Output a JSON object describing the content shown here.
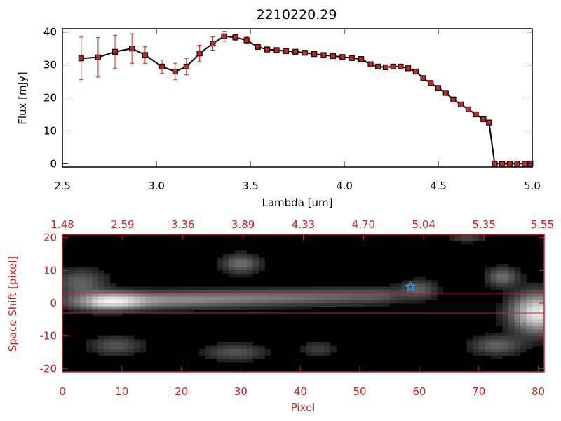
{
  "chart_data": [
    {
      "type": "line",
      "title": "2210220.29",
      "xlabel": "Lambda [um]",
      "ylabel": "Flux [mJy]",
      "xlim": [
        2.5,
        5.0
      ],
      "ylim": [
        -1,
        41
      ],
      "xticks": [
        "2.5",
        "3.0",
        "3.5",
        "4.0",
        "4.5",
        "5.0"
      ],
      "yticks": [
        "0",
        "10",
        "20",
        "30",
        "40"
      ],
      "grid": false,
      "legend": "none",
      "line_color": "#000000",
      "marker_color": "#cc2222",
      "errorbar_color": "#cc2222",
      "series": [
        {
          "x": [
            2.6,
            2.69,
            2.78,
            2.87,
            2.94,
            3.03,
            3.1,
            3.16,
            3.23,
            3.3,
            3.36,
            3.42,
            3.48,
            3.54,
            3.59,
            3.64,
            3.69,
            3.74,
            3.79,
            3.84,
            3.89,
            3.94,
            3.99,
            4.04,
            4.09,
            4.14,
            4.18,
            4.22,
            4.26,
            4.3,
            4.34,
            4.38,
            4.42,
            4.46,
            4.5,
            4.54,
            4.58,
            4.62,
            4.66,
            4.7,
            4.74,
            4.77,
            4.8,
            4.84,
            4.88,
            4.92,
            4.96,
            4.99
          ],
          "y": [
            32.0,
            32.3,
            34.0,
            35.0,
            33.0,
            29.5,
            28.0,
            29.5,
            33.5,
            36.5,
            38.7,
            38.4,
            37.5,
            35.5,
            34.7,
            34.5,
            34.2,
            34.0,
            33.7,
            33.3,
            33.0,
            32.7,
            32.4,
            32.1,
            31.8,
            30.2,
            29.5,
            29.3,
            29.5,
            29.5,
            29.0,
            28.0,
            26.0,
            24.5,
            23.0,
            21.5,
            19.5,
            18.0,
            16.5,
            15.0,
            13.5,
            12.5,
            0,
            0,
            0,
            0,
            0,
            0
          ],
          "err": [
            6.5,
            6.0,
            5.0,
            4.5,
            2.5,
            2.0,
            2.5,
            2.5,
            2.5,
            2.0,
            1.5,
            1.0,
            1.0,
            0.7,
            0.6,
            0.6,
            0.6,
            0.5,
            0.5,
            0.5,
            0.5,
            0.5,
            0.5,
            0.5,
            0.5,
            0.5,
            0.5,
            0.5,
            0.5,
            0.5,
            0.5,
            0.5,
            0.5,
            0.5,
            0.5,
            0.5,
            0.5,
            0.5,
            0.5,
            0.5,
            0.5,
            0.5,
            0,
            0,
            0,
            0,
            0,
            0
          ]
        }
      ]
    },
    {
      "type": "heatmap",
      "xlabel": "Pixel",
      "ylabel": "Space Shift [pixel]",
      "xlim": [
        0,
        81
      ],
      "ylim": [
        -21,
        21
      ],
      "xticks": [
        "0",
        "10",
        "20",
        "30",
        "40",
        "50",
        "60",
        "70",
        "80"
      ],
      "yticks": [
        "-20",
        "-10",
        "0",
        "10",
        "20"
      ],
      "top_axis_ticks": [
        "1.48",
        "2.59",
        "3.36",
        "3.89",
        "4.33",
        "4.70",
        "5.04",
        "5.35",
        "5.55"
      ],
      "colormap": "grayscale",
      "axis_color": "#cc2222",
      "hlines": [
        3,
        -3
      ],
      "marker": {
        "symbol": "star",
        "x": 58.5,
        "y": 5,
        "color": "#3399ff"
      },
      "features": [
        {
          "kind": "trace",
          "x_start": 0,
          "x_end": 58,
          "y_start": 0.3,
          "y_end": 2.5,
          "peak_x": 9,
          "peak": 1.0,
          "width": 1.8
        },
        {
          "kind": "blob",
          "x": 30,
          "y": 12,
          "sx": 2.2,
          "sy": 2.0,
          "amp": 0.35
        },
        {
          "kind": "blob",
          "x": 9,
          "y": -13,
          "sx": 3.0,
          "sy": 2.0,
          "amp": 0.25
        },
        {
          "kind": "blob",
          "x": 29,
          "y": -15,
          "sx": 3.5,
          "sy": 1.8,
          "amp": 0.25
        },
        {
          "kind": "blob",
          "x": 43,
          "y": -14,
          "sx": 2.0,
          "sy": 1.5,
          "amp": 0.18
        },
        {
          "kind": "blob",
          "x": 60,
          "y": 4,
          "sx": 2.0,
          "sy": 2.0,
          "amp": 0.3
        },
        {
          "kind": "blob",
          "x": 80,
          "y": -3,
          "sx": 3.0,
          "sy": 4.0,
          "amp": 0.9
        },
        {
          "kind": "blob",
          "x": 74,
          "y": 8,
          "sx": 1.8,
          "sy": 2.0,
          "amp": 0.35
        },
        {
          "kind": "blob",
          "x": 73,
          "y": -13,
          "sx": 3.0,
          "sy": 2.0,
          "amp": 0.3
        },
        {
          "kind": "blob",
          "x": 3,
          "y": 6,
          "sx": 3.0,
          "sy": 3.0,
          "amp": 0.3
        },
        {
          "kind": "blob",
          "x": 68,
          "y": 20,
          "sx": 2.0,
          "sy": 1.0,
          "amp": 0.2
        }
      ]
    }
  ]
}
